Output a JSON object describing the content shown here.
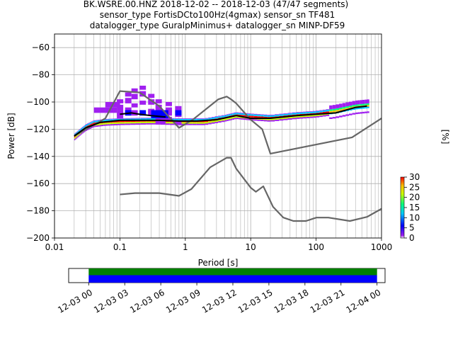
{
  "title": {
    "line1": "BK.WSRE.00.HNZ   2018-12-02 -- 2018-12-03  (47/47 segments)",
    "line2": "sensor_type FortisDCto100Hz(4gmax) sensor_sn TF481",
    "line3": "datalogger_type GuralpMinimus+ datalogger_sn MINP-DF59"
  },
  "chart_data": [
    {
      "type": "heatmap",
      "subtype": "probabilistic-power-spectral-density",
      "xlabel": "Period [s]",
      "ylabel": "Power [dB]",
      "xscale": "log",
      "xlim": [
        0.01,
        1000
      ],
      "ylim": [
        -200,
        -50
      ],
      "xtick_labels": [
        "0.01",
        "0.1",
        "1",
        "10",
        "100",
        "1000"
      ],
      "ytick_labels": [
        "-60",
        "-80",
        "-100",
        "-120",
        "-140",
        "-160",
        "-180",
        "-200"
      ],
      "yticks": [
        -60,
        -80,
        -100,
        -120,
        -140,
        -160,
        -180,
        -200
      ],
      "grid": true,
      "colorbar": {
        "label": "[%]",
        "ticks": [
          0,
          5,
          10,
          15,
          20,
          25,
          30
        ],
        "range": [
          0,
          30
        ],
        "colormap": [
          "#ffffff",
          "#a020f0",
          "#0000ff",
          "#00c8ff",
          "#00ff80",
          "#c8ff00",
          "#ffc000",
          "#ff0000"
        ]
      },
      "colors": {
        "noise_model": "#666666",
        "mode_curve": "#000000",
        "grid": "#b0b0b0"
      },
      "series": [
        {
          "role": "noise-model-high",
          "x": [
            0.02,
            0.06,
            0.1,
            0.2,
            0.4,
            0.8,
            1.3,
            3.2,
            4.3,
            5.0,
            6.0,
            10.0,
            15.0,
            20.0,
            354.8,
            1000
          ],
          "y": [
            -125,
            -112,
            -92,
            -93,
            -103,
            -119,
            -113,
            -98,
            -96,
            -98,
            -101,
            -113,
            -120,
            -138,
            -126,
            -112
          ]
        },
        {
          "role": "noise-model-low",
          "x": [
            0.1,
            0.17,
            0.4,
            0.8,
            1.24,
            2.4,
            4.3,
            5.0,
            6.0,
            10.0,
            12.0,
            15.6,
            21.9,
            31.6,
            45.0,
            70.0,
            101.0,
            154.0,
            328.0,
            600.0,
            1000
          ],
          "y": [
            -168,
            -167,
            -167,
            -169,
            -164,
            -148,
            -141,
            -141,
            -149,
            -163,
            -166,
            -162,
            -177,
            -185,
            -187.5,
            -187.5,
            -185,
            -185,
            -187.5,
            -184.5,
            -178.5
          ]
        },
        {
          "role": "mode",
          "x": [
            0.02,
            0.03,
            0.05,
            0.1,
            0.2,
            0.4,
            0.8,
            1.5,
            3.0,
            6.0,
            10.0,
            20.0,
            50.0,
            100.0,
            200.0,
            400.0,
            600.0
          ],
          "y": [
            -125,
            -119,
            -115,
            -113.5,
            -113.5,
            -113.5,
            -114,
            -114,
            -113,
            -110,
            -112,
            -112,
            -110,
            -109,
            -108,
            -104,
            -103
          ]
        },
        {
          "role": "mode",
          "x": [
            0.1,
            0.15,
            0.2,
            0.3,
            0.5
          ],
          "y": [
            -109,
            -108,
            -109,
            -110,
            -111
          ]
        }
      ]
    },
    {
      "type": "timeline",
      "xtick_labels": [
        "12-03 00",
        "12-03 03",
        "12-03 06",
        "12-03 09",
        "12-03 12",
        "12-03 15",
        "12-03 18",
        "12-03 21",
        "12-04 00"
      ],
      "x_start": "12-02 22:20",
      "x_end": "12-04 00:40",
      "bars": [
        {
          "color": "#008000",
          "start": "12-03 00:00",
          "end": "12-04 00:00"
        },
        {
          "color": "#0000ff",
          "start": "12-03 00:00",
          "end": "12-04 00:00"
        }
      ]
    }
  ]
}
